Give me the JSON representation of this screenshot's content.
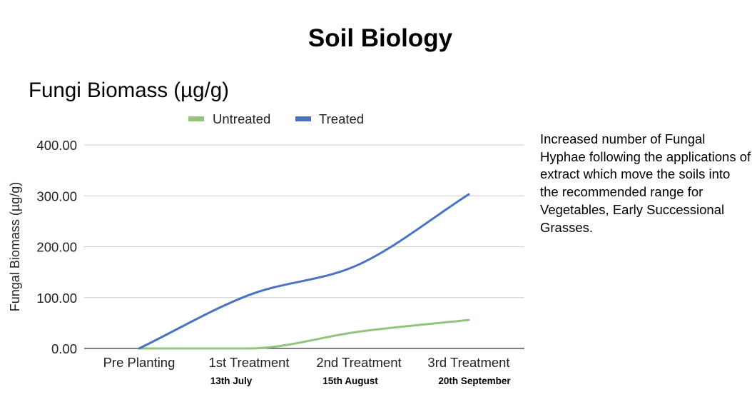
{
  "page": {
    "title": "Soil Biology"
  },
  "chart_data": {
    "type": "line",
    "title": "Fungi Biomass (µg/g)",
    "xlabel": "",
    "ylabel": "Fungal Biomass (µg/g)",
    "categories": [
      "Pre Planting",
      "1st Treatment",
      "2nd Treatment",
      "3rd Treatment"
    ],
    "category_sublabels": [
      "",
      "13th July",
      "15th August",
      "20th September"
    ],
    "ylim": [
      0,
      400
    ],
    "yticks": [
      0,
      100,
      200,
      300,
      400
    ],
    "ytick_labels": [
      "0.00",
      "100.00",
      "200.00",
      "300.00",
      "400.00"
    ],
    "grid": true,
    "legend_position": "top",
    "series": [
      {
        "name": "Untreated",
        "color": "#93c47d",
        "values": [
          0,
          0,
          33,
          56
        ]
      },
      {
        "name": "Treated",
        "color": "#4a72c4",
        "values": [
          0,
          105,
          165,
          303
        ]
      }
    ]
  },
  "side_note": {
    "text": "Increased number of Fungal Hyphae following the applications of extract which move the soils into the recommended range for Vegetables, Early Successional Grasses."
  },
  "colors": {
    "grid": "#cccccc",
    "axis": "#333333",
    "text": "#000000"
  }
}
